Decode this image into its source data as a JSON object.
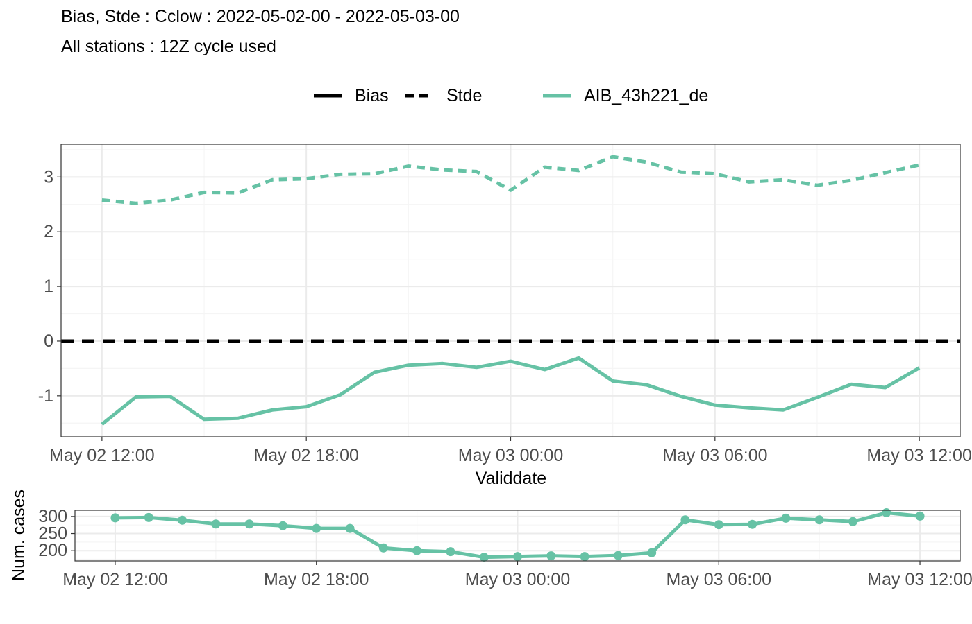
{
  "header": {
    "title": "Bias, Stde : Cclow : 2022-05-02-00 - 2022-05-03-00",
    "subtitle": "All stations : 12Z cycle used"
  },
  "legend": {
    "linetype_items": [
      "Bias",
      "Stde"
    ],
    "model_items": [
      "AIB_43h221_de"
    ]
  },
  "colors": {
    "model": "#66c2a5",
    "zero_line": "#000000",
    "grid_major": "#ebebeb",
    "grid_minor": "#f5f5f5",
    "panel_border": "#333333"
  },
  "chart_data": [
    {
      "type": "line",
      "panel": "main",
      "xlabel": "Validdate",
      "ylabel": "",
      "x_tick_labels": [
        "May 02 12:00",
        "May 02 18:00",
        "May 03 00:00",
        "May 03 06:00",
        "May 03 12:00"
      ],
      "x_ticks_hours": [
        0,
        6,
        12,
        18,
        24
      ],
      "y_ticks": [
        -1,
        0,
        1,
        2,
        3
      ],
      "ylim": [
        -1.75,
        3.6
      ],
      "xlim_hours": [
        -1.2,
        25.2
      ],
      "x_hours": [
        0,
        1,
        2,
        3,
        4,
        5,
        6,
        7,
        8,
        9,
        10,
        11,
        12,
        13,
        14,
        15,
        16,
        17,
        18,
        19,
        20,
        21,
        22,
        23,
        24
      ],
      "series": [
        {
          "name": "Stde",
          "model": "AIB_43h221_de",
          "linetype": "dashed",
          "values": [
            2.58,
            2.52,
            2.58,
            2.72,
            2.71,
            2.95,
            2.97,
            3.05,
            3.06,
            3.2,
            3.13,
            3.1,
            2.76,
            3.18,
            3.12,
            3.37,
            3.27,
            3.09,
            3.06,
            2.91,
            2.95,
            2.85,
            2.94,
            3.08,
            3.22
          ]
        },
        {
          "name": "Bias",
          "model": "AIB_43h221_de",
          "linetype": "solid",
          "values": [
            -1.52,
            -1.02,
            -1.01,
            -1.43,
            -1.41,
            -1.26,
            -1.2,
            -0.98,
            -0.57,
            -0.44,
            -0.41,
            -0.48,
            -0.37,
            -0.52,
            -0.31,
            -0.73,
            -0.8,
            -1.01,
            -1.17,
            -1.22,
            -1.26,
            -1.03,
            -0.79,
            -0.85,
            -0.49
          ]
        }
      ],
      "reference_line": {
        "y": 0,
        "style": "dashed",
        "color": "#000000"
      },
      "grid": true
    },
    {
      "type": "line",
      "panel": "cases",
      "xlabel": "",
      "ylabel": "Num. cases",
      "x_tick_labels": [
        "May 02 12:00",
        "May 02 18:00",
        "May 03 00:00",
        "May 03 06:00",
        "May 03 12:00"
      ],
      "x_ticks_hours": [
        0,
        6,
        12,
        18,
        24
      ],
      "y_ticks": [
        200,
        250,
        300
      ],
      "ylim": [
        170,
        318
      ],
      "xlim_hours": [
        -1.2,
        25.2
      ],
      "x_hours": [
        0,
        1,
        2,
        3,
        4,
        5,
        6,
        7,
        8,
        9,
        10,
        11,
        12,
        13,
        14,
        15,
        16,
        17,
        18,
        19,
        20,
        21,
        22,
        23,
        24
      ],
      "series": [
        {
          "name": "AIB_43h221_de",
          "markers": true,
          "values": [
            296,
            297,
            289,
            278,
            278,
            273,
            265,
            265,
            208,
            200,
            197,
            181,
            183,
            185,
            183,
            186,
            194,
            290,
            276,
            277,
            295,
            290,
            285,
            311,
            301
          ]
        }
      ],
      "grid": true
    }
  ]
}
